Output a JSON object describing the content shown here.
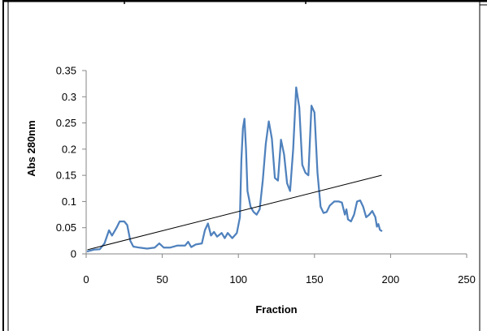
{
  "chart_data": {
    "type": "line",
    "title": "",
    "xlabel": "Fraction",
    "ylabel": "Abs 280nm",
    "xlim": [
      0,
      250
    ],
    "ylim": [
      0,
      0.35
    ],
    "xticks": [
      0,
      50,
      100,
      150,
      200,
      250
    ],
    "xtick_labels": [
      "0",
      "50",
      "100",
      "150",
      "200",
      "250"
    ],
    "yticks": [
      0,
      0.05,
      0.1,
      0.15,
      0.2,
      0.25,
      0.3,
      0.35
    ],
    "ytick_labels": [
      "0",
      "0.05",
      "0.1",
      "0.15",
      "0.2",
      "0.25",
      "0.3",
      "0.35"
    ],
    "grid": false,
    "legend": "none",
    "series": [
      {
        "color": "#4f81bd",
        "points": [
          [
            1,
            0.005
          ],
          [
            5,
            0.008
          ],
          [
            9,
            0.009
          ],
          [
            12,
            0.02
          ],
          [
            15,
            0.045
          ],
          [
            17,
            0.035
          ],
          [
            20,
            0.05
          ],
          [
            22,
            0.062
          ],
          [
            25,
            0.062
          ],
          [
            27,
            0.055
          ],
          [
            29,
            0.025
          ],
          [
            31,
            0.014
          ],
          [
            35,
            0.012
          ],
          [
            40,
            0.01
          ],
          [
            45,
            0.012
          ],
          [
            48,
            0.02
          ],
          [
            51,
            0.012
          ],
          [
            55,
            0.012
          ],
          [
            60,
            0.016
          ],
          [
            65,
            0.016
          ],
          [
            67,
            0.023
          ],
          [
            69,
            0.013
          ],
          [
            72,
            0.018
          ],
          [
            76,
            0.02
          ],
          [
            78,
            0.045
          ],
          [
            80,
            0.058
          ],
          [
            82,
            0.035
          ],
          [
            84,
            0.042
          ],
          [
            86,
            0.033
          ],
          [
            89,
            0.04
          ],
          [
            91,
            0.03
          ],
          [
            93,
            0.04
          ],
          [
            96,
            0.03
          ],
          [
            99,
            0.04
          ],
          [
            101,
            0.07
          ],
          [
            102,
            0.18
          ],
          [
            103,
            0.24
          ],
          [
            104,
            0.258
          ],
          [
            105,
            0.2
          ],
          [
            106,
            0.12
          ],
          [
            108,
            0.09
          ],
          [
            110,
            0.08
          ],
          [
            112,
            0.075
          ],
          [
            114,
            0.085
          ],
          [
            116,
            0.14
          ],
          [
            118,
            0.21
          ],
          [
            120,
            0.253
          ],
          [
            122,
            0.22
          ],
          [
            124,
            0.145
          ],
          [
            126,
            0.14
          ],
          [
            128,
            0.218
          ],
          [
            130,
            0.19
          ],
          [
            132,
            0.135
          ],
          [
            134,
            0.12
          ],
          [
            136,
            0.2
          ],
          [
            138,
            0.318
          ],
          [
            140,
            0.28
          ],
          [
            142,
            0.17
          ],
          [
            144,
            0.155
          ],
          [
            146,
            0.15
          ],
          [
            148,
            0.283
          ],
          [
            150,
            0.27
          ],
          [
            152,
            0.155
          ],
          [
            154,
            0.09
          ],
          [
            156,
            0.078
          ],
          [
            158,
            0.08
          ],
          [
            160,
            0.092
          ],
          [
            163,
            0.1
          ],
          [
            166,
            0.1
          ],
          [
            168,
            0.098
          ],
          [
            170,
            0.075
          ],
          [
            171,
            0.085
          ],
          [
            172,
            0.066
          ],
          [
            174,
            0.062
          ],
          [
            176,
            0.075
          ],
          [
            178,
            0.1
          ],
          [
            180,
            0.102
          ],
          [
            182,
            0.09
          ],
          [
            184,
            0.07
          ],
          [
            186,
            0.075
          ],
          [
            188,
            0.082
          ],
          [
            190,
            0.07
          ],
          [
            191,
            0.052
          ],
          [
            192,
            0.057
          ],
          [
            193,
            0.046
          ],
          [
            194,
            0.044
          ]
        ]
      },
      {
        "color": "#000000",
        "points": [
          [
            1,
            0.008
          ],
          [
            194,
            0.15
          ]
        ]
      }
    ]
  }
}
